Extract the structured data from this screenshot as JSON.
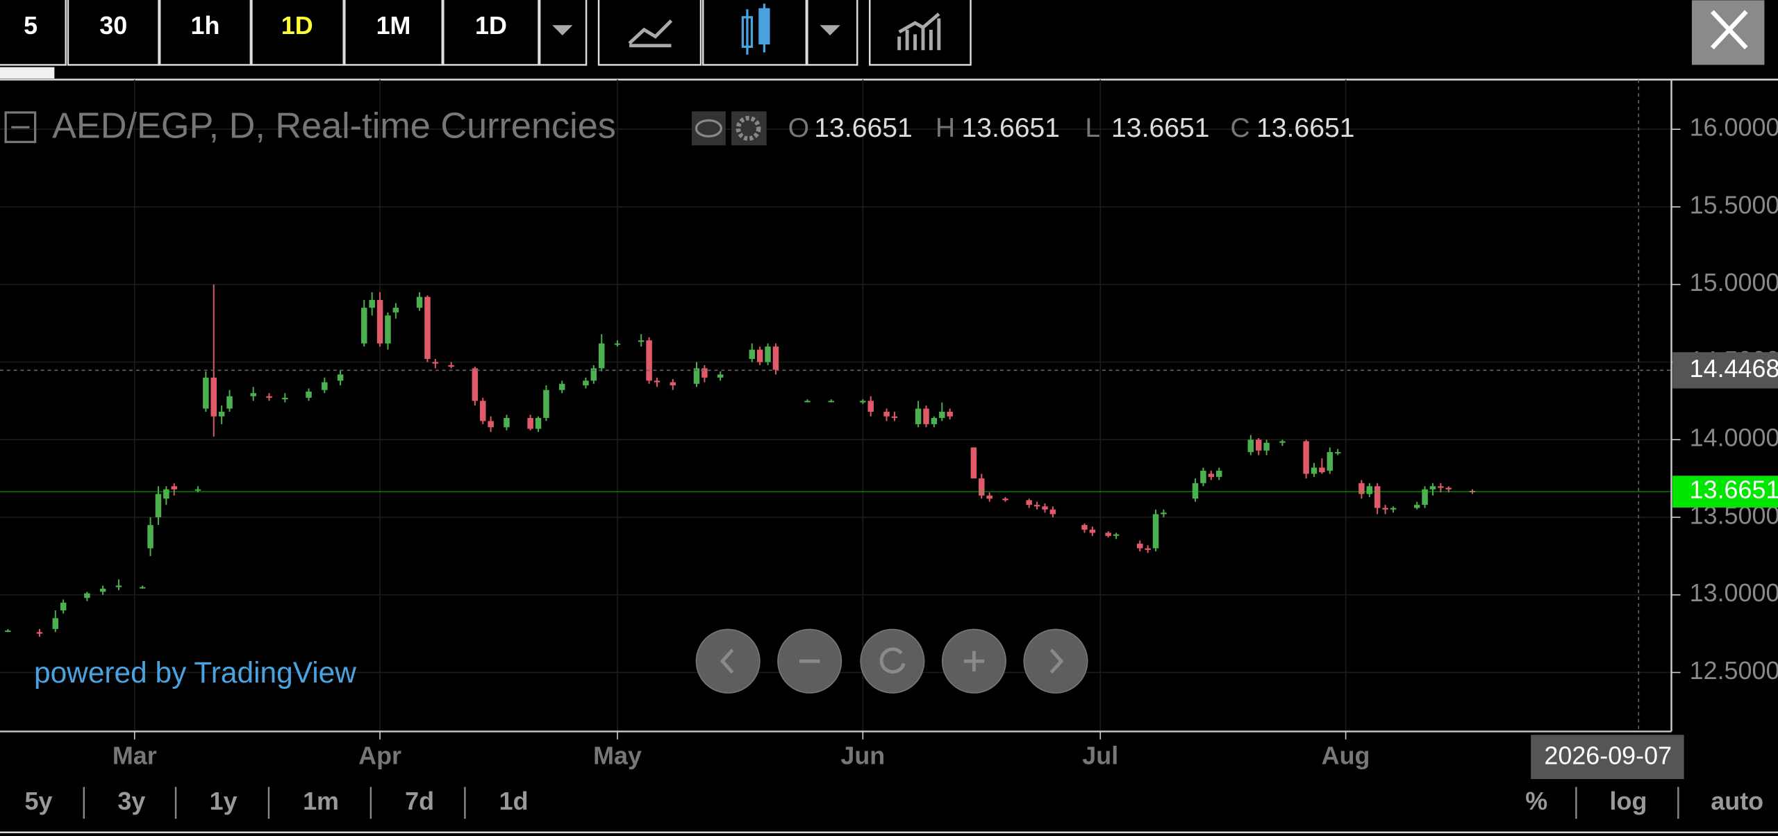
{
  "toolbar": {
    "intervals": [
      "5",
      "30",
      "1h",
      "1D",
      "1M",
      "1D"
    ],
    "active": 3,
    "active_color": "#ffff33"
  },
  "chart_data": {
    "type": "candlestick",
    "title": "AED/EGP, D, Real-time Currencies",
    "ohlc": [
      {
        "label": "O",
        "value": 13.6651
      },
      {
        "label": "H",
        "value": 13.6651
      },
      {
        "label": "L",
        "value": 13.6651
      },
      {
        "label": "C",
        "value": 13.6651
      }
    ],
    "up_color": "#4caf50",
    "down_color": "#e05a6a",
    "x": [
      "2026-02-13",
      "2026-02-17",
      "2026-02-19",
      "2026-02-20",
      "2026-02-23",
      "2026-02-25",
      "2026-02-27",
      "2026-03-02",
      "2026-03-03",
      "2026-03-04",
      "2026-03-05",
      "2026-03-06",
      "2026-03-09",
      "2026-03-10",
      "2026-03-11",
      "2026-03-12",
      "2026-03-13",
      "2026-03-16",
      "2026-03-18",
      "2026-03-20",
      "2026-03-23",
      "2026-03-25",
      "2026-03-27",
      "2026-03-30",
      "2026-03-31",
      "2026-04-01",
      "2026-04-02",
      "2026-04-03",
      "2026-04-06",
      "2026-04-07",
      "2026-04-08",
      "2026-04-10",
      "2026-04-13",
      "2026-04-14",
      "2026-04-15",
      "2026-04-17",
      "2026-04-20",
      "2026-04-21",
      "2026-04-22",
      "2026-04-24",
      "2026-04-27",
      "2026-04-28",
      "2026-04-29",
      "2026-05-01",
      "2026-05-04",
      "2026-05-05",
      "2026-05-06",
      "2026-05-08",
      "2026-05-11",
      "2026-05-12",
      "2026-05-14",
      "2026-05-18",
      "2026-05-19",
      "2026-05-20",
      "2026-05-21",
      "2026-05-25",
      "2026-05-28",
      "2026-06-01",
      "2026-06-02",
      "2026-06-04",
      "2026-06-05",
      "2026-06-08",
      "2026-06-09",
      "2026-06-10",
      "2026-06-11",
      "2026-06-12",
      "2026-06-15",
      "2026-06-16",
      "2026-06-17",
      "2026-06-19",
      "2026-06-22",
      "2026-06-23",
      "2026-06-24",
      "2026-06-25",
      "2026-06-29",
      "2026-06-30",
      "2026-07-02",
      "2026-07-03",
      "2026-07-06",
      "2026-07-07",
      "2026-07-08",
      "2026-07-09",
      "2026-07-13",
      "2026-07-14",
      "2026-07-15",
      "2026-07-16",
      "2026-07-20",
      "2026-07-21",
      "2026-07-22",
      "2026-07-24",
      "2026-07-27",
      "2026-07-28",
      "2026-07-29",
      "2026-07-30",
      "2026-07-31",
      "2026-08-03",
      "2026-08-04",
      "2026-08-05",
      "2026-08-06",
      "2026-08-07",
      "2026-08-10",
      "2026-08-11",
      "2026-08-12",
      "2026-08-13",
      "2026-08-14",
      "2026-08-17"
    ],
    "open": [
      12.77,
      12.76,
      12.78,
      12.9,
      12.98,
      13.02,
      13.05,
      13.05,
      13.3,
      13.5,
      13.62,
      13.7,
      13.68,
      14.2,
      14.4,
      14.15,
      14.2,
      14.28,
      14.28,
      14.26,
      14.27,
      14.32,
      14.38,
      14.62,
      14.85,
      14.9,
      14.62,
      14.82,
      14.85,
      14.92,
      14.5,
      14.48,
      14.46,
      14.25,
      14.12,
      14.08,
      14.14,
      14.07,
      14.14,
      14.32,
      14.35,
      14.38,
      14.46,
      14.62,
      14.63,
      14.64,
      14.38,
      14.37,
      14.36,
      14.46,
      14.4,
      14.52,
      14.58,
      14.5,
      14.6,
      14.25,
      14.25,
      14.24,
      14.25,
      14.18,
      14.15,
      14.1,
      14.2,
      14.1,
      14.14,
      14.18,
      13.95,
      13.75,
      13.64,
      13.62,
      13.61,
      13.58,
      13.57,
      13.55,
      13.45,
      13.42,
      13.4,
      13.38,
      13.33,
      13.3,
      13.3,
      13.52,
      13.62,
      13.72,
      13.78,
      13.76,
      13.92,
      14.0,
      13.93,
      13.98,
      13.99,
      13.78,
      13.82,
      13.8,
      13.92,
      13.72,
      13.65,
      13.7,
      13.56,
      13.55,
      13.56,
      13.58,
      13.68,
      13.7,
      13.69,
      13.67
    ],
    "high": [
      12.78,
      12.78,
      12.9,
      12.97,
      13.02,
      13.06,
      13.1,
      13.06,
      13.5,
      13.7,
      13.7,
      13.72,
      13.7,
      14.44,
      15.0,
      14.22,
      14.32,
      14.34,
      14.3,
      14.3,
      14.33,
      14.4,
      14.45,
      14.9,
      14.95,
      14.95,
      14.82,
      14.88,
      14.95,
      14.93,
      14.52,
      14.5,
      14.47,
      14.27,
      14.15,
      14.16,
      14.16,
      14.15,
      14.35,
      14.38,
      14.4,
      14.48,
      14.68,
      14.64,
      14.68,
      14.66,
      14.4,
      14.39,
      14.5,
      14.48,
      14.44,
      14.62,
      14.6,
      14.62,
      14.62,
      14.26,
      14.26,
      14.26,
      14.28,
      14.2,
      14.18,
      14.25,
      14.22,
      14.15,
      14.24,
      14.2,
      13.95,
      13.78,
      13.66,
      13.63,
      13.62,
      13.6,
      13.59,
      13.57,
      13.46,
      13.44,
      13.41,
      13.4,
      13.35,
      13.32,
      13.55,
      13.55,
      13.75,
      13.82,
      13.8,
      13.82,
      14.03,
      14.01,
      14.0,
      14.0,
      14.0,
      13.85,
      13.88,
      13.95,
      13.94,
      13.74,
      13.72,
      13.72,
      13.58,
      13.57,
      13.6,
      13.7,
      13.72,
      13.72,
      13.7,
      13.68
    ],
    "low": [
      12.76,
      12.73,
      12.76,
      12.88,
      12.96,
      13.0,
      13.03,
      13.04,
      13.25,
      13.45,
      13.58,
      13.64,
      13.66,
      14.18,
      14.02,
      14.1,
      14.18,
      14.25,
      14.25,
      14.24,
      14.25,
      14.3,
      14.35,
      14.6,
      14.8,
      14.6,
      14.58,
      14.78,
      14.83,
      14.5,
      14.46,
      14.46,
      14.22,
      14.1,
      14.05,
      14.06,
      14.06,
      14.05,
      14.12,
      14.3,
      14.33,
      14.36,
      14.44,
      14.6,
      14.6,
      14.36,
      14.34,
      14.32,
      14.34,
      14.37,
      14.38,
      14.5,
      14.48,
      14.48,
      14.42,
      14.24,
      14.24,
      14.23,
      14.15,
      14.12,
      14.12,
      14.08,
      14.08,
      14.08,
      14.12,
      14.13,
      13.75,
      13.62,
      13.6,
      13.6,
      13.56,
      13.55,
      13.53,
      13.5,
      13.4,
      13.38,
      13.37,
      13.36,
      13.28,
      13.27,
      13.28,
      13.5,
      13.6,
      13.7,
      13.74,
      13.74,
      13.9,
      13.9,
      13.9,
      13.96,
      13.75,
      13.76,
      13.78,
      13.78,
      13.9,
      13.62,
      13.63,
      13.52,
      13.52,
      13.53,
      13.55,
      13.56,
      13.64,
      13.66,
      13.66,
      13.65
    ],
    "close": [
      12.77,
      12.75,
      12.85,
      12.95,
      13.01,
      13.04,
      13.06,
      13.05,
      13.45,
      13.65,
      13.68,
      13.68,
      13.68,
      14.4,
      14.15,
      14.18,
      14.28,
      14.3,
      14.27,
      14.27,
      14.31,
      14.37,
      14.42,
      14.85,
      14.9,
      14.62,
      14.8,
      14.85,
      14.92,
      14.52,
      14.49,
      14.47,
      14.25,
      14.12,
      14.08,
      14.14,
      14.07,
      14.14,
      14.32,
      14.36,
      14.38,
      14.46,
      14.62,
      14.62,
      14.64,
      14.38,
      14.37,
      14.35,
      14.46,
      14.4,
      14.42,
      14.58,
      14.5,
      14.6,
      14.45,
      14.25,
      14.25,
      14.25,
      14.18,
      14.15,
      14.14,
      14.2,
      14.1,
      14.14,
      14.18,
      14.15,
      13.75,
      13.64,
      13.62,
      13.61,
      13.58,
      13.57,
      13.55,
      13.52,
      13.42,
      13.4,
      13.38,
      13.39,
      13.3,
      13.29,
      13.52,
      13.53,
      13.72,
      13.8,
      13.76,
      13.8,
      14.0,
      13.93,
      13.98,
      13.99,
      13.78,
      13.82,
      13.79,
      13.92,
      13.92,
      13.65,
      13.7,
      13.56,
      13.55,
      13.56,
      13.58,
      13.68,
      13.7,
      13.69,
      13.68,
      13.6651
    ],
    "xlim": [
      "2026-02-12",
      "2026-09-11"
    ],
    "xticks": [
      {
        "value": "2026-03-01",
        "label": "Mar"
      },
      {
        "value": "2026-04-01",
        "label": "Apr"
      },
      {
        "value": "2026-05-01",
        "label": "May"
      },
      {
        "value": "2026-06-01",
        "label": "Jun"
      },
      {
        "value": "2026-07-01",
        "label": "Jul"
      },
      {
        "value": "2026-08-01",
        "label": "Aug"
      }
    ],
    "ylim": [
      12.12,
      16.32
    ],
    "yticks": [
      {
        "value": 12.5,
        "label": "12.5000"
      },
      {
        "value": 13,
        "label": "13.0000"
      },
      {
        "value": 13.5,
        "label": "13.5000"
      },
      {
        "value": 14,
        "label": "14.0000"
      },
      {
        "value": 14.5,
        "label": "14.5000"
      },
      {
        "value": 15,
        "label": "15.0000"
      },
      {
        "value": 15.5,
        "label": "15.5000"
      },
      {
        "value": 16,
        "label": "16.0000"
      }
    ],
    "grid": true,
    "last_price": 13.6651,
    "last_price_color": "#00e600",
    "crosshair": {
      "price": 14.4468,
      "date": "2026-09-07"
    }
  },
  "watermark": "powered by TradingView",
  "ranges": [
    "5y",
    "3y",
    "1y",
    "1m",
    "7d",
    "1d"
  ],
  "scale_options": [
    "%",
    "log",
    "auto"
  ]
}
